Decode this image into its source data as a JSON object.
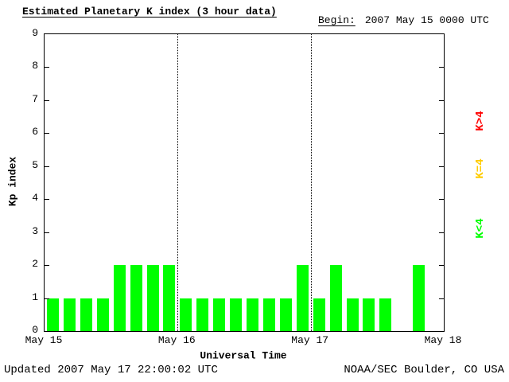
{
  "header": {
    "begin_label": "Begin:",
    "begin_value": "2007 May 15 0000 UTC"
  },
  "footer": {
    "updated": "Updated 2007 May 17 22:00:02 UTC",
    "source": "NOAA/SEC Boulder, CO USA"
  },
  "chart_data": {
    "type": "bar",
    "title": "Estimated Planetary K index (3 hour data)",
    "xlabel": "Universal Time",
    "ylabel": "Kp index",
    "ylim": [
      0,
      9
    ],
    "y_ticks": [
      0,
      1,
      2,
      3,
      4,
      5,
      6,
      7,
      8,
      9
    ],
    "x_tick_labels": [
      "May 15",
      "May 16",
      "May 17",
      "May 18"
    ],
    "bars_per_day": 8,
    "bar_interval_hours": 3,
    "bar_color": "#00ff00",
    "grid": "dotted vertical lines at day boundaries",
    "legend_position": "right, rotated 90deg",
    "legend": [
      {
        "label": "K>4",
        "color": "#ff0000"
      },
      {
        "label": "K=4",
        "color": "#ffcc00"
      },
      {
        "label": "K<4",
        "color": "#00ff00"
      }
    ],
    "series": [
      {
        "day": "May 15",
        "values": [
          1,
          1,
          1,
          1,
          2,
          2,
          2,
          2
        ]
      },
      {
        "day": "May 16",
        "values": [
          1,
          1,
          1,
          1,
          1,
          1,
          1,
          2
        ]
      },
      {
        "day": "May 17",
        "values": [
          1,
          2,
          1,
          1,
          1,
          0,
          2,
          null
        ]
      }
    ]
  }
}
